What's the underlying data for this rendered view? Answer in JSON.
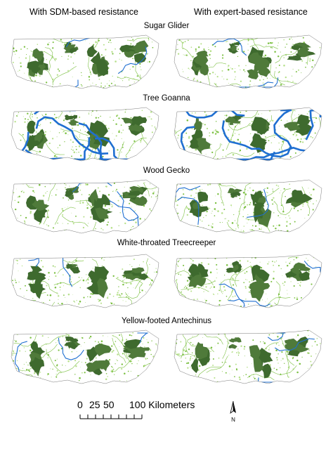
{
  "columns": {
    "left": "With SDM-based resistance",
    "right": "With expert-based resistance"
  },
  "species": [
    "Sugar Glider",
    "Tree Goanna",
    "Wood Gecko",
    "White-throated Treecreeper",
    "Yellow-footed Antechinus"
  ],
  "scale": {
    "labels": [
      "0",
      "25",
      "50",
      "100 Kilometers"
    ]
  },
  "north": {
    "label": "N",
    "icon": "north-arrow-icon"
  },
  "colors": {
    "core_habitat": "#3e6a2e",
    "dark_forest": "#4f7a3a",
    "suitable_habitat": "#7cc043",
    "light_habitat": "#b6e08a",
    "corridor": "#1f6fd1",
    "boundary": "#555555"
  }
}
